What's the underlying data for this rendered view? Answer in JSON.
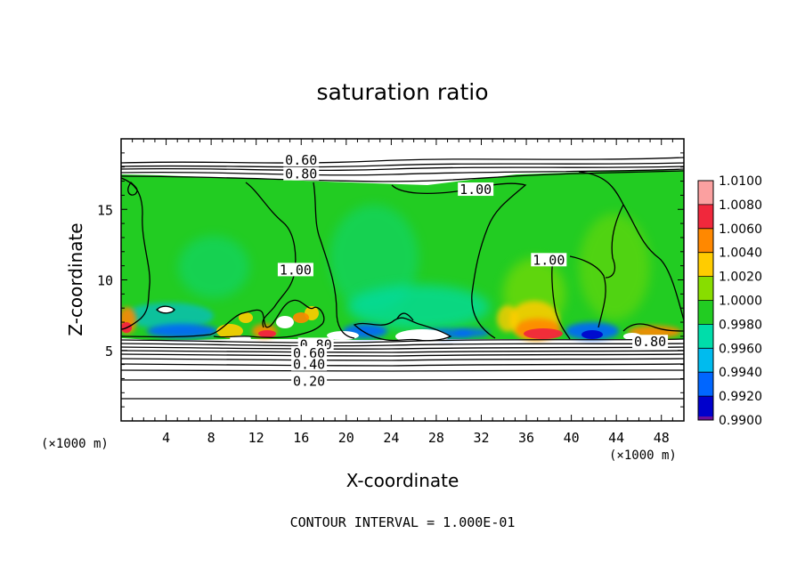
{
  "chart_data": {
    "type": "heatmap",
    "title": "saturation ratio",
    "xlabel": "X-coordinate",
    "ylabel": "Z-coordinate",
    "x_unit_label": "(×1000 m)",
    "y_unit_label": "(×1000 m)",
    "xlim": [
      0,
      50
    ],
    "ylim": [
      0,
      20
    ],
    "x_ticks": [
      4,
      8,
      12,
      16,
      20,
      24,
      28,
      32,
      36,
      40,
      44,
      48
    ],
    "y_ticks": [
      5,
      10,
      15
    ],
    "footer": "CONTOUR INTERVAL = 1.000E-01",
    "colorbar": {
      "levels": [
        "1.0100",
        "1.0080",
        "1.0060",
        "1.0040",
        "1.0020",
        "1.0000",
        "0.9980",
        "0.9960",
        "0.9940",
        "0.9920",
        "0.9900"
      ],
      "colors": [
        "#fba0a0",
        "#f0283c",
        "#ff8800",
        "#ffcc00",
        "#88dd00",
        "#22cc22",
        "#00ddaa",
        "#00bbee",
        "#0066ff",
        "#0000cc",
        "#6a0f9a"
      ]
    },
    "contour_labels": [
      {
        "text": "0.60",
        "x": 16,
        "z": 18.5
      },
      {
        "text": "0.80",
        "x": 16,
        "z": 17.5
      },
      {
        "text": "1.00",
        "x": 31.5,
        "z": 16.4
      },
      {
        "text": "1.00",
        "x": 15.5,
        "z": 10.7
      },
      {
        "text": "1.00",
        "x": 38,
        "z": 11.4
      },
      {
        "text": "0.80",
        "x": 17.3,
        "z": 5.4
      },
      {
        "text": "0.60",
        "x": 16.7,
        "z": 4.8
      },
      {
        "text": "0.40",
        "x": 16.7,
        "z": 4.0
      },
      {
        "text": "0.20",
        "x": 16.7,
        "z": 2.8
      },
      {
        "text": "0.80",
        "x": 47,
        "z": 5.6
      }
    ]
  }
}
